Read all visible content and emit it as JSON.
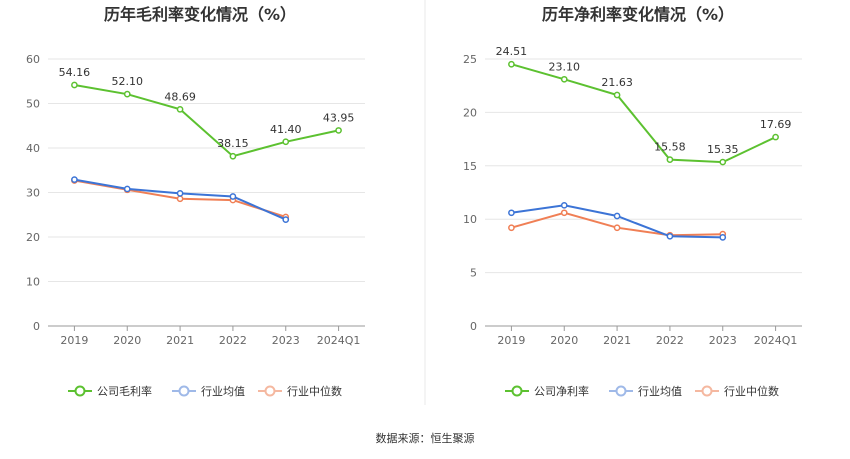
{
  "source": "数据来源：恒生聚源",
  "chart_data": [
    {
      "type": "line",
      "title": "历年毛利率变化情况（%）",
      "categories": [
        "2019",
        "2020",
        "2021",
        "2022",
        "2023",
        "2024Q1"
      ],
      "ylim": [
        0,
        60
      ],
      "yticks": [
        0,
        10,
        20,
        30,
        40,
        50,
        60
      ],
      "grid": true,
      "legend_position": "bottom",
      "series": [
        {
          "name": "公司毛利率",
          "color": "#5cc130",
          "values": [
            54.16,
            52.1,
            48.69,
            38.15,
            41.4,
            43.95
          ],
          "labels": [
            "54.16",
            "52.10",
            "48.69",
            "38.15",
            "41.40",
            "43.95"
          ]
        },
        {
          "name": "行业均值",
          "color": "#3c74d6",
          "values": [
            32.9,
            30.8,
            29.8,
            29.1,
            23.9,
            null
          ]
        },
        {
          "name": "行业中位数",
          "color": "#f07f55",
          "values": [
            32.7,
            30.6,
            28.6,
            28.3,
            24.5,
            null
          ]
        }
      ]
    },
    {
      "type": "line",
      "title": "历年净利率变化情况（%）",
      "categories": [
        "2019",
        "2020",
        "2021",
        "2022",
        "2023",
        "2024Q1"
      ],
      "ylim": [
        0,
        25
      ],
      "yticks": [
        0,
        5,
        10,
        15,
        20,
        25
      ],
      "grid": true,
      "legend_position": "bottom",
      "series": [
        {
          "name": "公司净利率",
          "color": "#5cc130",
          "values": [
            24.51,
            23.1,
            21.63,
            15.58,
            15.35,
            17.69
          ],
          "labels": [
            "24.51",
            "23.10",
            "21.63",
            "15.58",
            "15.35",
            "17.69"
          ]
        },
        {
          "name": "行业均值",
          "color": "#3c74d6",
          "values": [
            10.6,
            11.3,
            10.3,
            8.4,
            8.3,
            null
          ]
        },
        {
          "name": "行业中位数",
          "color": "#f07f55",
          "values": [
            9.2,
            10.6,
            9.2,
            8.5,
            8.6,
            null
          ]
        }
      ]
    }
  ]
}
